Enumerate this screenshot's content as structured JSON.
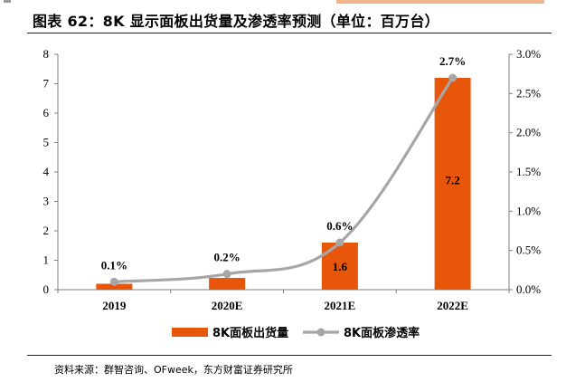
{
  "title": "图表 62：8K 显示面板出货量及渗透率预测（单位：百万台）",
  "source": "资料来源：群智咨询、OFweek，东方财富证券研究所",
  "colors": {
    "bar": "#E8560A",
    "line": "#A6A6A6",
    "axis": "#808080"
  },
  "chart_data": {
    "type": "bar",
    "categories": [
      "2019",
      "2020E",
      "2021E",
      "2022E"
    ],
    "series": [
      {
        "name": "8K面板出货量",
        "type": "bar",
        "axis": "left",
        "values": [
          0.2,
          0.4,
          1.6,
          7.2
        ],
        "labels": [
          "",
          "",
          "1.6",
          "7.2"
        ]
      },
      {
        "name": "8K面板渗透率",
        "type": "line",
        "axis": "right",
        "values": [
          0.1,
          0.2,
          0.6,
          2.7
        ],
        "labels": [
          "0.1%",
          "0.2%",
          "0.6%",
          "2.7%"
        ]
      }
    ],
    "y_left": {
      "range": [
        0,
        8
      ],
      "ticks": [
        "0",
        "1",
        "2",
        "3",
        "4",
        "5",
        "6",
        "7",
        "8"
      ]
    },
    "y_right": {
      "range": [
        0,
        3.0
      ],
      "ticks": [
        "0.0%",
        "0.5%",
        "1.0%",
        "1.5%",
        "2.0%",
        "2.5%",
        "3.0%"
      ]
    },
    "legend_position": "bottom",
    "grid": false
  }
}
